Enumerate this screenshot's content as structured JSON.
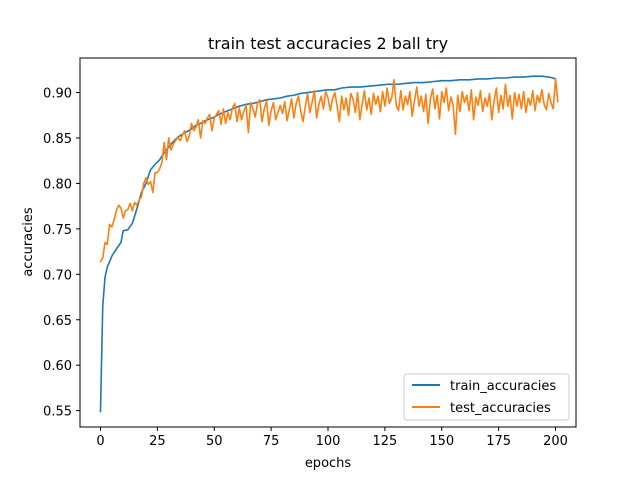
{
  "chart_data": {
    "type": "line",
    "title": "train test accuracies 2 ball try",
    "xlabel": "epochs",
    "ylabel": "accuracies",
    "xlim": [
      -9,
      209
    ],
    "ylim": [
      0.532,
      0.938
    ],
    "xticks": [
      0,
      25,
      50,
      75,
      100,
      125,
      150,
      175,
      200
    ],
    "yticks": [
      0.55,
      0.6,
      0.65,
      0.7,
      0.75,
      0.8,
      0.85,
      0.9
    ],
    "grid": false,
    "legend_position": "lower-right",
    "series": [
      {
        "name": "train_accuracies",
        "color": "#1f77b4",
        "points": [
          [
            0,
            0.549
          ],
          [
            1,
            0.665
          ],
          [
            2,
            0.697
          ],
          [
            3,
            0.708
          ],
          [
            5,
            0.72
          ],
          [
            7,
            0.728
          ],
          [
            9,
            0.735
          ],
          [
            10,
            0.748
          ],
          [
            12,
            0.749
          ],
          [
            14,
            0.756
          ],
          [
            16,
            0.772
          ],
          [
            18,
            0.79
          ],
          [
            20,
            0.8
          ],
          [
            22,
            0.815
          ],
          [
            24,
            0.821
          ],
          [
            26,
            0.826
          ],
          [
            28,
            0.834
          ],
          [
            30,
            0.84
          ],
          [
            32,
            0.846
          ],
          [
            34,
            0.851
          ],
          [
            36,
            0.854
          ],
          [
            38,
            0.857
          ],
          [
            40,
            0.86
          ],
          [
            42,
            0.864
          ],
          [
            44,
            0.866
          ],
          [
            46,
            0.869
          ],
          [
            48,
            0.871
          ],
          [
            50,
            0.873
          ],
          [
            52,
            0.876
          ],
          [
            55,
            0.879
          ],
          [
            58,
            0.882
          ],
          [
            61,
            0.885
          ],
          [
            64,
            0.887
          ],
          [
            67,
            0.888
          ],
          [
            70,
            0.89
          ],
          [
            73,
            0.892
          ],
          [
            76,
            0.893
          ],
          [
            79,
            0.894
          ],
          [
            82,
            0.896
          ],
          [
            85,
            0.897
          ],
          [
            88,
            0.899
          ],
          [
            91,
            0.9
          ],
          [
            94,
            0.901
          ],
          [
            97,
            0.902
          ],
          [
            100,
            0.903
          ],
          [
            103,
            0.903
          ],
          [
            106,
            0.905
          ],
          [
            110,
            0.906
          ],
          [
            114,
            0.906
          ],
          [
            118,
            0.907
          ],
          [
            122,
            0.908
          ],
          [
            126,
            0.909
          ],
          [
            130,
            0.909
          ],
          [
            134,
            0.91
          ],
          [
            138,
            0.911
          ],
          [
            142,
            0.911
          ],
          [
            146,
            0.912
          ],
          [
            150,
            0.913
          ],
          [
            154,
            0.913
          ],
          [
            158,
            0.914
          ],
          [
            162,
            0.914
          ],
          [
            166,
            0.915
          ],
          [
            170,
            0.915
          ],
          [
            174,
            0.916
          ],
          [
            178,
            0.916
          ],
          [
            182,
            0.917
          ],
          [
            186,
            0.917
          ],
          [
            190,
            0.918
          ],
          [
            194,
            0.918
          ],
          [
            197,
            0.917
          ],
          [
            199,
            0.916
          ],
          [
            200,
            0.915
          ]
        ]
      },
      {
        "name": "test_accuracies",
        "color": "#ff7f0e",
        "points": [
          [
            0,
            0.714
          ],
          [
            1,
            0.718
          ],
          [
            2,
            0.735
          ],
          [
            3,
            0.733
          ],
          [
            4,
            0.755
          ],
          [
            5,
            0.752
          ],
          [
            6,
            0.76
          ],
          [
            7,
            0.77
          ],
          [
            8,
            0.776
          ],
          [
            9,
            0.773
          ],
          [
            10,
            0.762
          ],
          [
            11,
            0.77
          ],
          [
            12,
            0.771
          ],
          [
            13,
            0.778
          ],
          [
            14,
            0.77
          ],
          [
            15,
            0.779
          ],
          [
            16,
            0.776
          ],
          [
            17,
            0.782
          ],
          [
            18,
            0.785
          ],
          [
            19,
            0.8
          ],
          [
            20,
            0.806
          ],
          [
            21,
            0.799
          ],
          [
            22,
            0.802
          ],
          [
            23,
            0.79
          ],
          [
            24,
            0.812
          ],
          [
            25,
            0.812
          ],
          [
            26,
            0.816
          ],
          [
            27,
            0.823
          ],
          [
            28,
            0.845
          ],
          [
            29,
            0.826
          ],
          [
            30,
            0.85
          ],
          [
            31,
            0.837
          ],
          [
            32,
            0.843
          ],
          [
            33,
            0.847
          ],
          [
            34,
            0.851
          ],
          [
            35,
            0.847
          ],
          [
            36,
            0.853
          ],
          [
            37,
            0.858
          ],
          [
            38,
            0.846
          ],
          [
            39,
            0.852
          ],
          [
            40,
            0.866
          ],
          [
            41,
            0.858
          ],
          [
            42,
            0.862
          ],
          [
            43,
            0.87
          ],
          [
            44,
            0.85
          ],
          [
            45,
            0.869
          ],
          [
            46,
            0.866
          ],
          [
            47,
            0.872
          ],
          [
            48,
            0.876
          ],
          [
            49,
            0.858
          ],
          [
            50,
            0.872
          ],
          [
            51,
            0.876
          ],
          [
            52,
            0.88
          ],
          [
            53,
            0.865
          ],
          [
            54,
            0.882
          ],
          [
            55,
            0.866
          ],
          [
            56,
            0.878
          ],
          [
            57,
            0.87
          ],
          [
            58,
            0.883
          ],
          [
            59,
            0.888
          ],
          [
            60,
            0.868
          ],
          [
            61,
            0.883
          ],
          [
            62,
            0.87
          ],
          [
            63,
            0.879
          ],
          [
            64,
            0.886
          ],
          [
            65,
            0.856
          ],
          [
            66,
            0.889
          ],
          [
            67,
            0.882
          ],
          [
            68,
            0.873
          ],
          [
            69,
            0.888
          ],
          [
            70,
            0.892
          ],
          [
            71,
            0.868
          ],
          [
            72,
            0.882
          ],
          [
            73,
            0.891
          ],
          [
            74,
            0.864
          ],
          [
            75,
            0.88
          ],
          [
            76,
            0.889
          ],
          [
            77,
            0.87
          ],
          [
            78,
            0.878
          ],
          [
            79,
            0.886
          ],
          [
            80,
            0.877
          ],
          [
            81,
            0.89
          ],
          [
            82,
            0.869
          ],
          [
            83,
            0.881
          ],
          [
            84,
            0.893
          ],
          [
            85,
            0.872
          ],
          [
            86,
            0.888
          ],
          [
            87,
            0.896
          ],
          [
            88,
            0.88
          ],
          [
            89,
            0.868
          ],
          [
            90,
            0.884
          ],
          [
            91,
            0.899
          ],
          [
            92,
            0.878
          ],
          [
            93,
            0.889
          ],
          [
            94,
            0.902
          ],
          [
            95,
            0.872
          ],
          [
            96,
            0.887
          ],
          [
            97,
            0.896
          ],
          [
            98,
            0.882
          ],
          [
            99,
            0.901
          ],
          [
            100,
            0.894
          ],
          [
            101,
            0.88
          ],
          [
            102,
            0.893
          ],
          [
            103,
            0.9
          ],
          [
            104,
            0.885
          ],
          [
            105,
            0.868
          ],
          [
            106,
            0.896
          ],
          [
            107,
            0.881
          ],
          [
            108,
            0.894
          ],
          [
            109,
            0.875
          ],
          [
            110,
            0.899
          ],
          [
            111,
            0.893
          ],
          [
            112,
            0.878
          ],
          [
            113,
            0.9
          ],
          [
            114,
            0.87
          ],
          [
            115,
            0.887
          ],
          [
            116,
            0.902
          ],
          [
            117,
            0.881
          ],
          [
            118,
            0.894
          ],
          [
            119,
            0.876
          ],
          [
            120,
            0.899
          ],
          [
            121,
            0.887
          ],
          [
            122,
            0.896
          ],
          [
            123,
            0.879
          ],
          [
            124,
            0.901
          ],
          [
            125,
            0.885
          ],
          [
            126,
            0.905
          ],
          [
            127,
            0.888
          ],
          [
            128,
            0.894
          ],
          [
            129,
            0.914
          ],
          [
            130,
            0.886
          ],
          [
            131,
            0.88
          ],
          [
            132,
            0.902
          ],
          [
            133,
            0.881
          ],
          [
            134,
            0.896
          ],
          [
            135,
            0.887
          ],
          [
            136,
            0.901
          ],
          [
            137,
            0.874
          ],
          [
            138,
            0.891
          ],
          [
            139,
            0.906
          ],
          [
            140,
            0.885
          ],
          [
            141,
            0.896
          ],
          [
            142,
            0.879
          ],
          [
            143,
            0.898
          ],
          [
            144,
            0.866
          ],
          [
            145,
            0.893
          ],
          [
            146,
            0.904
          ],
          [
            147,
            0.882
          ],
          [
            148,
            0.897
          ],
          [
            149,
            0.871
          ],
          [
            150,
            0.901
          ],
          [
            151,
            0.889
          ],
          [
            152,
            0.905
          ],
          [
            153,
            0.88
          ],
          [
            154,
            0.895
          ],
          [
            155,
            0.886
          ],
          [
            156,
            0.854
          ],
          [
            157,
            0.897
          ],
          [
            158,
            0.879
          ],
          [
            159,
            0.901
          ],
          [
            160,
            0.889
          ],
          [
            161,
            0.897
          ],
          [
            162,
            0.88
          ],
          [
            163,
            0.903
          ],
          [
            164,
            0.87
          ],
          [
            165,
            0.895
          ],
          [
            166,
            0.886
          ],
          [
            167,
            0.902
          ],
          [
            168,
            0.879
          ],
          [
            169,
            0.894
          ],
          [
            170,
            0.885
          ],
          [
            171,
            0.899
          ],
          [
            172,
            0.87
          ],
          [
            173,
            0.891
          ],
          [
            174,
            0.905
          ],
          [
            175,
            0.878
          ],
          [
            176,
            0.897
          ],
          [
            177,
            0.882
          ],
          [
            178,
            0.909
          ],
          [
            179,
            0.885
          ],
          [
            180,
            0.897
          ],
          [
            181,
            0.871
          ],
          [
            182,
            0.9
          ],
          [
            183,
            0.885
          ],
          [
            184,
            0.898
          ],
          [
            185,
            0.882
          ],
          [
            186,
            0.901
          ],
          [
            187,
            0.878
          ],
          [
            188,
            0.894
          ],
          [
            189,
            0.886
          ],
          [
            190,
            0.902
          ],
          [
            191,
            0.88
          ],
          [
            192,
            0.897
          ],
          [
            193,
            0.889
          ],
          [
            194,
            0.903
          ],
          [
            195,
            0.887
          ],
          [
            196,
            0.881
          ],
          [
            197,
            0.899
          ],
          [
            198,
            0.889
          ],
          [
            199,
            0.882
          ],
          [
            200,
            0.915
          ],
          [
            201,
            0.89
          ]
        ]
      }
    ]
  }
}
